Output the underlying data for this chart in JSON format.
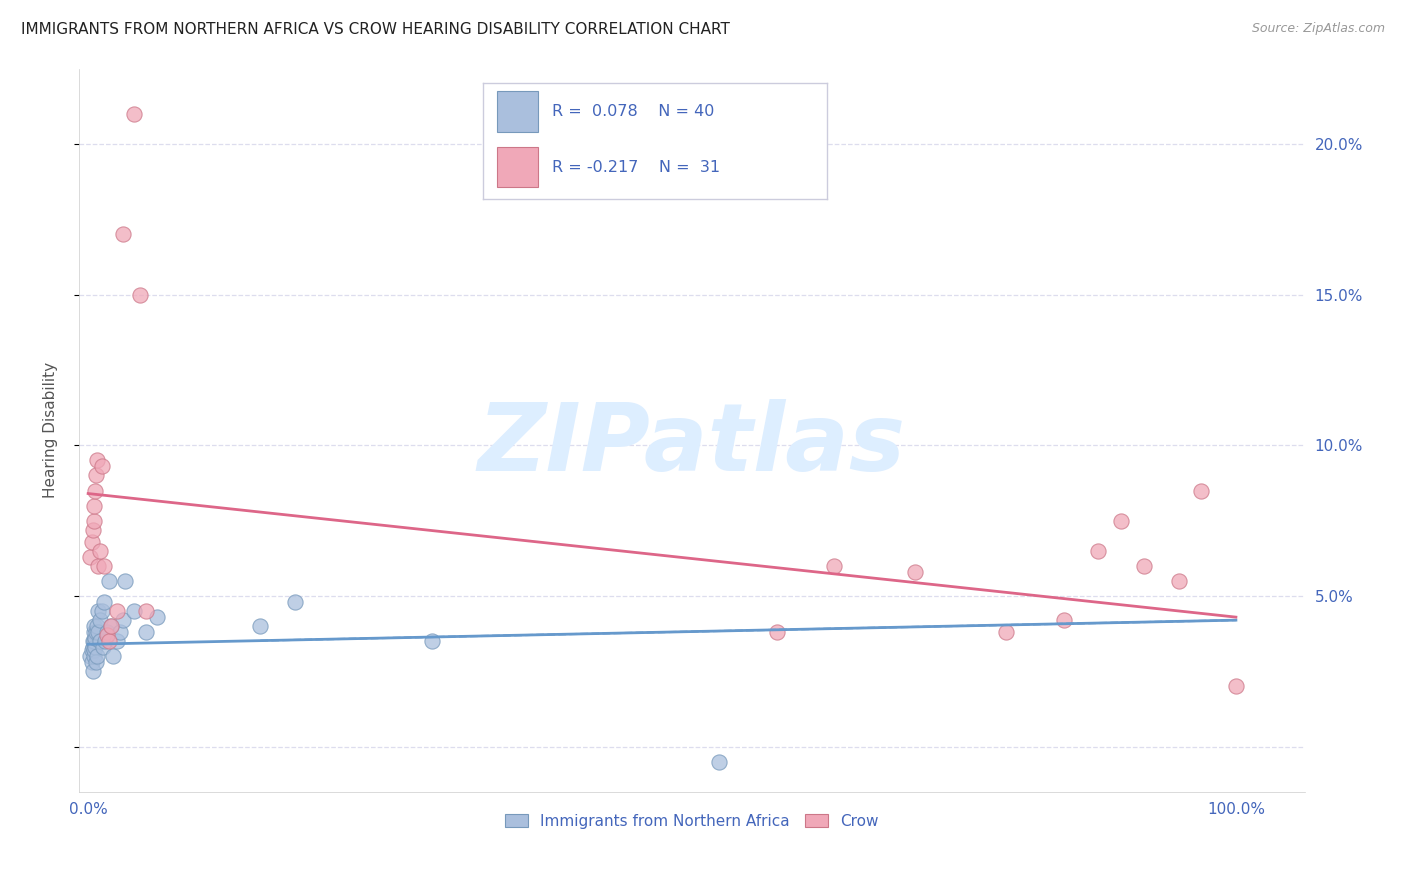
{
  "title": "IMMIGRANTS FROM NORTHERN AFRICA VS CROW HEARING DISABILITY CORRELATION CHART",
  "source": "Source: ZipAtlas.com",
  "ylabel": "Hearing Disability",
  "watermark": "ZIPatlas",
  "legend_entries": [
    {
      "label": "Immigrants from Northern Africa",
      "R": 0.078,
      "N": 40
    },
    {
      "label": "Crow",
      "R": -0.217,
      "N": 31
    }
  ],
  "yticks": [
    0.0,
    0.05,
    0.1,
    0.15,
    0.2
  ],
  "ytick_labels": [
    "",
    "5.0%",
    "10.0%",
    "15.0%",
    "20.0%"
  ],
  "ymin": -0.015,
  "ymax": 0.225,
  "xmin": -0.008,
  "xmax": 1.06,
  "blue_scatter_x": [
    0.002,
    0.003,
    0.003,
    0.004,
    0.004,
    0.004,
    0.005,
    0.005,
    0.005,
    0.005,
    0.005,
    0.006,
    0.006,
    0.007,
    0.007,
    0.008,
    0.008,
    0.009,
    0.009,
    0.01,
    0.01,
    0.012,
    0.013,
    0.014,
    0.015,
    0.016,
    0.018,
    0.02,
    0.022,
    0.025,
    0.028,
    0.03,
    0.032,
    0.04,
    0.05,
    0.06,
    0.15,
    0.18,
    0.3,
    0.55
  ],
  "blue_scatter_y": [
    0.03,
    0.028,
    0.032,
    0.025,
    0.033,
    0.035,
    0.03,
    0.032,
    0.035,
    0.038,
    0.04,
    0.033,
    0.036,
    0.028,
    0.038,
    0.03,
    0.04,
    0.038,
    0.045,
    0.035,
    0.042,
    0.045,
    0.033,
    0.048,
    0.035,
    0.038,
    0.055,
    0.04,
    0.03,
    0.035,
    0.038,
    0.042,
    0.055,
    0.045,
    0.038,
    0.043,
    0.04,
    0.048,
    0.035,
    -0.005
  ],
  "pink_scatter_x": [
    0.002,
    0.003,
    0.004,
    0.005,
    0.005,
    0.006,
    0.007,
    0.008,
    0.009,
    0.01,
    0.012,
    0.014,
    0.016,
    0.018,
    0.02,
    0.025,
    0.03,
    0.04,
    0.045,
    0.05,
    0.6,
    0.65,
    0.72,
    0.8,
    0.85,
    0.88,
    0.9,
    0.92,
    0.95,
    0.97,
    1.0
  ],
  "pink_scatter_y": [
    0.063,
    0.068,
    0.072,
    0.075,
    0.08,
    0.085,
    0.09,
    0.095,
    0.06,
    0.065,
    0.093,
    0.06,
    0.037,
    0.035,
    0.04,
    0.045,
    0.17,
    0.21,
    0.15,
    0.045,
    0.038,
    0.06,
    0.058,
    0.038,
    0.042,
    0.065,
    0.075,
    0.06,
    0.055,
    0.085,
    0.02
  ],
  "blue_trend_y_start": 0.034,
  "blue_trend_y_end": 0.042,
  "pink_trend_y_start": 0.084,
  "pink_trend_y_end": 0.043,
  "bg_color": "#ffffff",
  "blue_color": "#6699cc",
  "pink_color": "#dd6688",
  "blue_scatter_color": "#aabfdd",
  "blue_scatter_edge": "#7799bb",
  "pink_scatter_color": "#f0a8b8",
  "pink_scatter_edge": "#cc7788",
  "axis_color": "#4466bb",
  "grid_color": "#ddddee",
  "title_fontsize": 11,
  "source_fontsize": 9,
  "watermark_color": "#ddeeff",
  "watermark_fontsize": 68,
  "legend_box_color": "#ccccdd",
  "legend_text_color": "#4466bb"
}
